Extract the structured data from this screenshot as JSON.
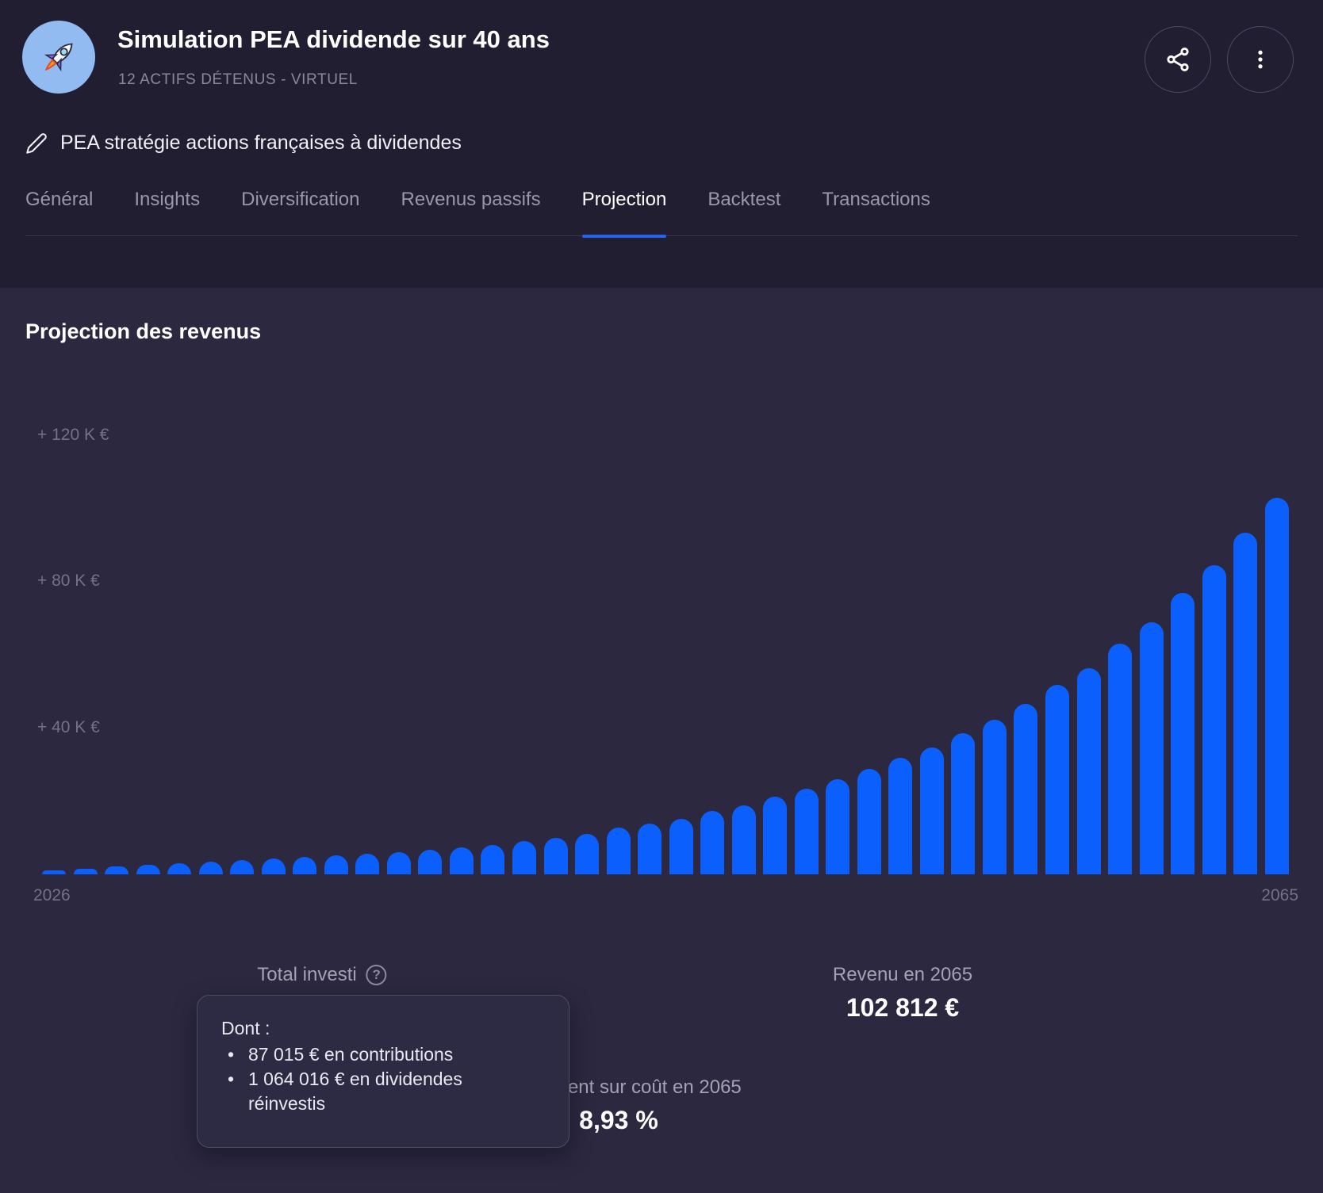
{
  "portfolio": {
    "title": "Simulation PEA dividende sur 40 ans",
    "subtitle": "12 ACTIFS DÉTENUS - VIRTUEL",
    "description": "PEA stratégie actions françaises à dividendes",
    "avatar_icon": "rocket-icon"
  },
  "actions": {
    "share_icon": "share-icon",
    "menu_icon": "kebab-menu-icon",
    "edit_icon": "pencil-icon"
  },
  "tabs": [
    {
      "label": "Général",
      "active": false
    },
    {
      "label": "Insights",
      "active": false
    },
    {
      "label": "Diversification",
      "active": false
    },
    {
      "label": "Revenus passifs",
      "active": false
    },
    {
      "label": "Projection",
      "active": true
    },
    {
      "label": "Backtest",
      "active": false
    },
    {
      "label": "Transactions",
      "active": false
    }
  ],
  "section": {
    "title": "Projection des revenus"
  },
  "chart_data": {
    "type": "bar",
    "title": "Projection des revenus",
    "x": [
      2026,
      2027,
      2028,
      2029,
      2030,
      2031,
      2032,
      2033,
      2034,
      2035,
      2036,
      2037,
      2038,
      2039,
      2040,
      2041,
      2042,
      2043,
      2044,
      2045,
      2046,
      2047,
      2048,
      2049,
      2050,
      2051,
      2052,
      2053,
      2054,
      2055,
      2056,
      2057,
      2058,
      2059,
      2060,
      2061,
      2062,
      2063,
      2064,
      2065
    ],
    "values": [
      900,
      1500,
      2150,
      2620,
      3050,
      3480,
      3910,
      4340,
      4740,
      5170,
      5640,
      6160,
      6720,
      7330,
      8000,
      9090,
      9950,
      11030,
      12760,
      13850,
      15140,
      17310,
      18820,
      21200,
      23360,
      25960,
      28770,
      31800,
      34600,
      38500,
      42200,
      46500,
      51700,
      56300,
      63000,
      68800,
      76800,
      84400,
      93290,
      102812
    ],
    "xlabel": "",
    "ylabel": "",
    "y_ticks": [
      "+ 40 K €",
      "+ 80 K €",
      "+ 120 K €"
    ],
    "y_tick_values": [
      40000,
      80000,
      120000
    ],
    "x_axis_labels": [
      "2026",
      "2065"
    ],
    "ylim": [
      0,
      124000
    ],
    "grid": false,
    "legend": "none",
    "bar_color": "#0B5FFC"
  },
  "stats": {
    "total_invested": {
      "label": "Total investi",
      "help_icon": "?"
    },
    "revenue_2065": {
      "label": "Revenu en 2065",
      "value": "102 812 €"
    },
    "yield_on_cost_2065": {
      "label": "Rendement sur coût en 2065",
      "value": "8,93 %"
    }
  },
  "tooltip": {
    "intro": "Dont :",
    "items": [
      "87 015 € en contributions",
      "1 064 016 € en dividendes réinvestis"
    ]
  },
  "colors": {
    "header_bg": "#211E32",
    "body_bg": "#2B2840",
    "bar_blue": "#0B5FFC",
    "tab_underline": "#2563EB",
    "avatar_bg": "#92BBF2",
    "muted_text": "#757186"
  }
}
